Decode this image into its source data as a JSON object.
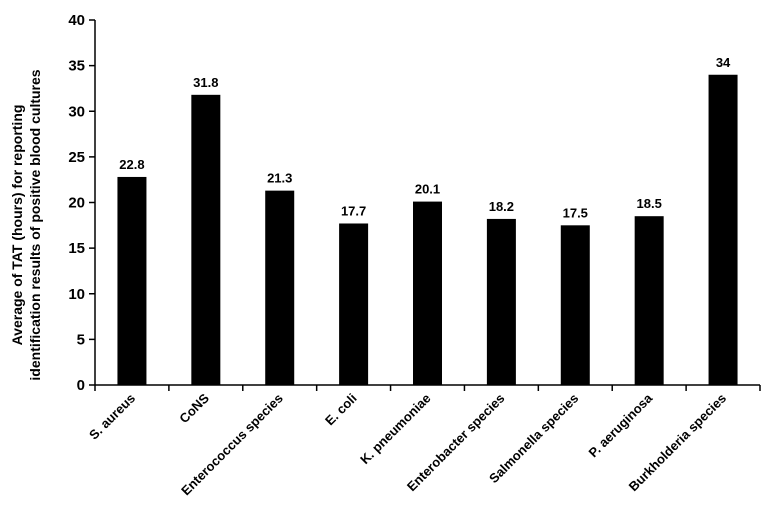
{
  "chart_data": {
    "type": "bar",
    "categories": [
      "S. aureus",
      "CoNS",
      "Enterococcus species",
      "E. coli",
      "K. pneumoniae",
      "Enterobacter species",
      "Salmonella species",
      "P. aeruginosa",
      "Burkholderia species"
    ],
    "values": [
      22.8,
      31.8,
      21.3,
      17.7,
      20.1,
      18.2,
      17.5,
      18.5,
      34
    ],
    "data_labels": [
      "22.8",
      "31.8",
      "21.3",
      "17.7",
      "20.1",
      "18.2",
      "17.5",
      "18.5",
      "34"
    ],
    "ylabel_lines": [
      "Average of TAT (hours) for reporting",
      "identification results of positive blood cultures"
    ],
    "xlabel": "",
    "title": "",
    "ylim": [
      0,
      40
    ],
    "yticks": [
      0,
      5,
      10,
      15,
      20,
      25,
      30,
      35,
      40
    ],
    "grid": false,
    "legend": "none",
    "bar_color": "#000000"
  }
}
